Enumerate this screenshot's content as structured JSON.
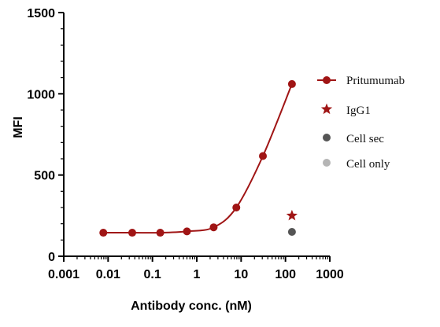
{
  "chart_data": {
    "type": "line",
    "xlabel": "Antibody conc. (nM)",
    "ylabel": "MFI",
    "x_scale": "log",
    "xlim": [
      0.001,
      1000
    ],
    "ylim": [
      0,
      1500
    ],
    "x_ticks": [
      0.001,
      0.01,
      0.1,
      1,
      10,
      100,
      1000
    ],
    "x_tick_labels": [
      "0.001",
      "0.01",
      "0.1",
      "1",
      "10",
      "100",
      "1000"
    ],
    "y_ticks": [
      0,
      500,
      1000,
      1500
    ],
    "y_tick_labels": [
      "0",
      "500",
      "1000",
      "1500"
    ],
    "grid": false,
    "legend_position": "right",
    "series": [
      {
        "name": "Pritumumab",
        "marker": "circle",
        "color": "#A01515",
        "line": true,
        "x": [
          0.0078,
          0.035,
          0.15,
          0.6,
          2.4,
          7.8,
          31,
          140
        ],
        "y": [
          145,
          145,
          145,
          153,
          178,
          300,
          617,
          1060
        ]
      },
      {
        "name": "IgG1",
        "marker": "star",
        "color": "#A01515",
        "line": false,
        "x": [
          140
        ],
        "y": [
          250
        ]
      },
      {
        "name": "Cell sec",
        "marker": "circle",
        "color": "#555555",
        "line": false,
        "x": [
          140
        ],
        "y": [
          150
        ]
      },
      {
        "name": "Cell only",
        "marker": "circle",
        "color": "#B5B5B5",
        "line": false,
        "x": [],
        "y": []
      }
    ]
  }
}
